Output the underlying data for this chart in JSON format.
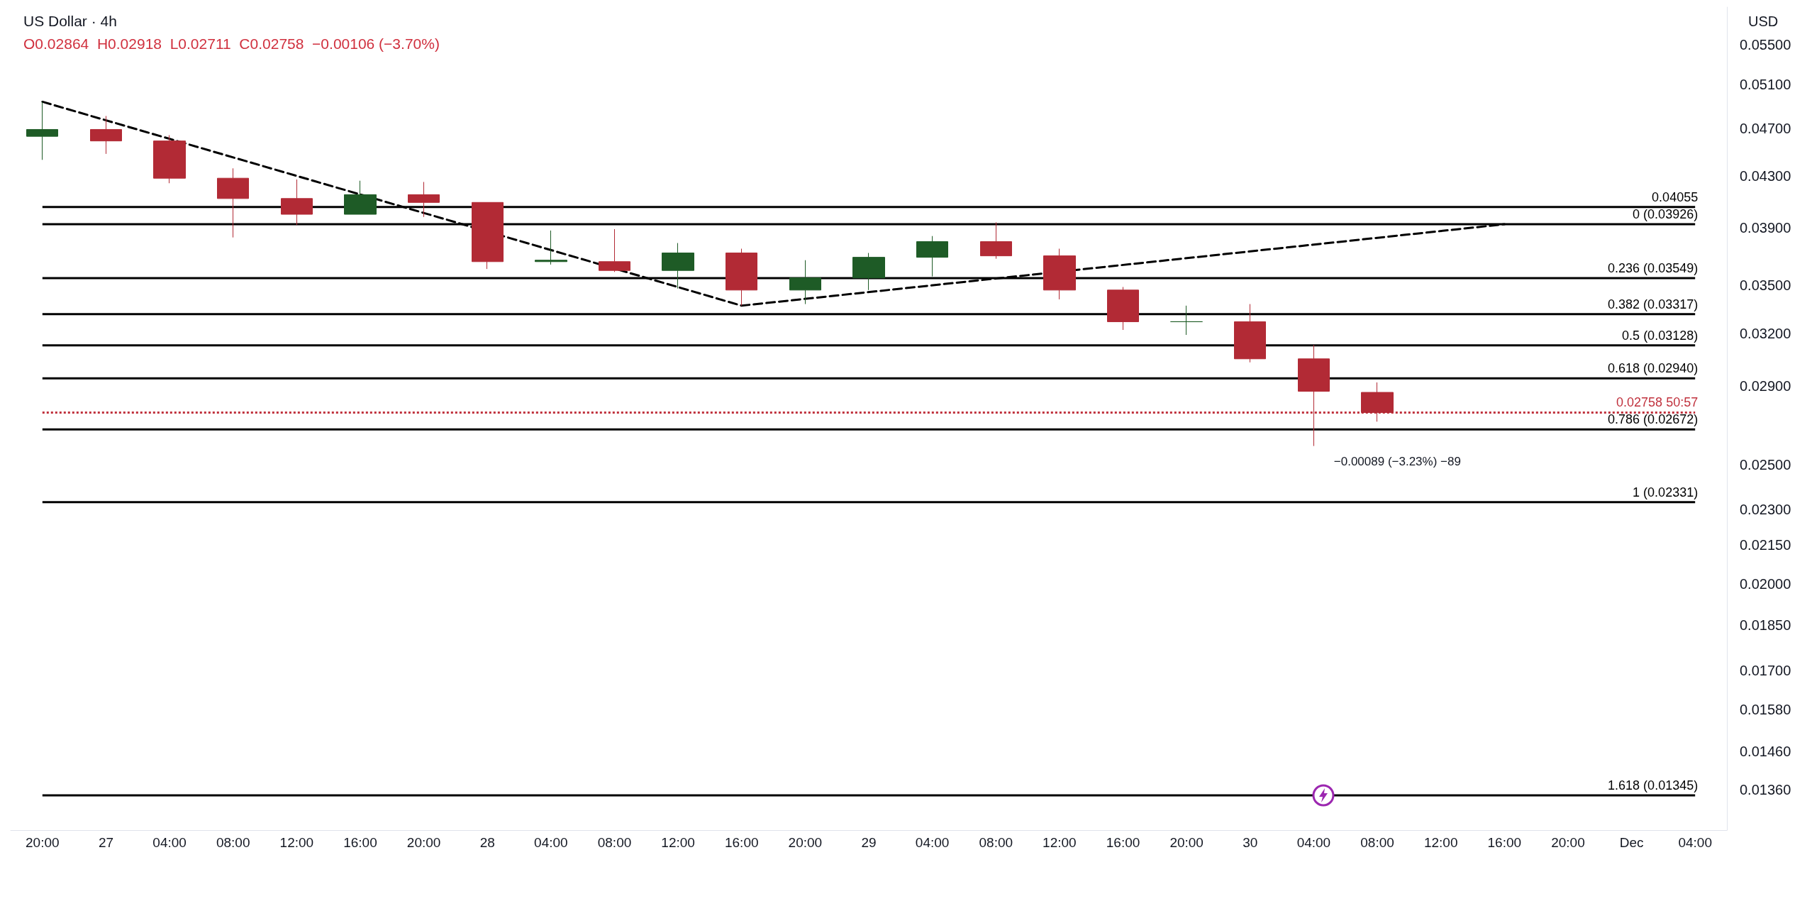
{
  "chart_data": {
    "type": "candlestick",
    "title": "US Dollar · 4h",
    "subtitle": "O0.02864  H0.02918  L0.02711  C0.02758  −0.00106 (−3.70%)",
    "ylabel": "USD",
    "categories": [
      "20:00",
      "27",
      "04:00",
      "08:00",
      "12:00",
      "16:00",
      "20:00",
      "28",
      "04:00",
      "08:00",
      "12:00",
      "16:00",
      "20:00",
      "29",
      "04:00",
      "08:00",
      "12:00",
      "16:00",
      "20:00",
      "30",
      "04:00",
      "08:00",
      "12:00",
      "16:00",
      "20:00",
      "Dec",
      "04:00"
    ],
    "ohlc": [
      [
        0.0463,
        0.0494,
        0.0443,
        0.0469
      ],
      [
        0.0469,
        0.0481,
        0.0448,
        0.0459
      ],
      [
        0.0459,
        0.0464,
        0.0424,
        0.0428
      ],
      [
        0.0428,
        0.0436,
        0.0383,
        0.0412
      ],
      [
        0.0412,
        0.0427,
        0.0392,
        0.04
      ],
      [
        0.04,
        0.0426,
        0.04,
        0.0415
      ],
      [
        0.0415,
        0.0425,
        0.0398,
        0.0409
      ],
      [
        0.0409,
        0.0409,
        0.0361,
        0.0366
      ],
      [
        0.0366,
        0.0388,
        0.0364,
        0.0367
      ],
      [
        0.0366,
        0.0389,
        0.0359,
        0.036
      ],
      [
        0.036,
        0.0379,
        0.0348,
        0.0372
      ],
      [
        0.0372,
        0.0375,
        0.0337,
        0.0347
      ],
      [
        0.0347,
        0.0367,
        0.0338,
        0.0355
      ],
      [
        0.0355,
        0.0372,
        0.0347,
        0.0369
      ],
      [
        0.0369,
        0.0384,
        0.0356,
        0.038
      ],
      [
        0.038,
        0.0394,
        0.0368,
        0.037
      ],
      [
        0.037,
        0.0375,
        0.0341,
        0.0347
      ],
      [
        0.0347,
        0.0349,
        0.0322,
        0.0327
      ],
      [
        0.0327,
        0.0337,
        0.0319,
        0.0327
      ],
      [
        0.0327,
        0.0338,
        0.0303,
        0.0305
      ],
      [
        0.0305,
        0.0313,
        0.0259,
        0.0287
      ],
      [
        0.02864,
        0.02918,
        0.02711,
        0.02758
      ],
      null,
      null,
      null,
      null,
      null
    ],
    "colors": [
      "#1e5b26",
      "#b22a35",
      "#b22a35",
      "#b22a35",
      "#b22a35",
      "#1e5b26",
      "#b22a35",
      "#b22a35",
      "#1e5b26",
      "#b22a35",
      "#1e5b26",
      "#b22a35",
      "#1e5b26",
      "#1e5b26",
      "#1e5b26",
      "#b22a35",
      "#b22a35",
      "#b22a35",
      "#1e5b26",
      "#b22a35",
      "#b22a35",
      "#b22a35",
      null,
      null,
      null,
      null,
      null
    ],
    "series": [
      {
        "type": "line",
        "color": "#000000",
        "line_style": "dashed",
        "marker": "none",
        "values": [
          0.0494,
          null,
          null,
          null,
          null,
          null,
          null,
          null,
          null,
          null,
          null,
          0.0337,
          null,
          null,
          null,
          null,
          null,
          null,
          null,
          null,
          null,
          null,
          null,
          0.03926,
          null,
          null,
          null
        ]
      }
    ],
    "ylim": [
      0.0126,
      0.059
    ],
    "log": true,
    "yticks": [
      {
        "value": 0.0136,
        "label": "0.01360"
      },
      {
        "value": 0.0146,
        "label": "0.01460"
      },
      {
        "value": 0.0158,
        "label": "0.01580"
      },
      {
        "value": 0.017,
        "label": "0.01700"
      },
      {
        "value": 0.0185,
        "label": "0.01850"
      },
      {
        "value": 0.02,
        "label": "0.02000"
      },
      {
        "value": 0.0215,
        "label": "0.02150"
      },
      {
        "value": 0.023,
        "label": "0.02300"
      },
      {
        "value": 0.025,
        "label": "0.02500"
      },
      {
        "value": 0.029,
        "label": "0.02900"
      },
      {
        "value": 0.032,
        "label": "0.03200"
      },
      {
        "value": 0.035,
        "label": "0.03500"
      },
      {
        "value": 0.039,
        "label": "0.03900"
      },
      {
        "value": 0.043,
        "label": "0.04300"
      },
      {
        "value": 0.047,
        "label": "0.04700"
      },
      {
        "value": 0.051,
        "label": "0.05100"
      },
      {
        "value": 0.055,
        "label": "0.05500"
      }
    ],
    "ref_lines": [
      {
        "axis": "y",
        "value": 0.04055,
        "label": "0.04055",
        "color": "#000000",
        "line_style": "solid"
      },
      {
        "axis": "y",
        "value": 0.02758,
        "label": "0.02758 50:57",
        "color": "#c0313d",
        "line_style": "dotted"
      },
      {
        "axis": "y",
        "value": 0.03926,
        "label": "0 (0.03926)",
        "color": "#000000",
        "line_style": "solid"
      },
      {
        "axis": "y",
        "value": 0.03549,
        "label": "0.236 (0.03549)",
        "color": "#000000",
        "line_style": "solid"
      },
      {
        "axis": "y",
        "value": 0.03317,
        "label": "0.382 (0.03317)",
        "color": "#000000",
        "line_style": "solid"
      },
      {
        "axis": "y",
        "value": 0.03128,
        "label": "0.5 (0.03128)",
        "color": "#000000",
        "line_style": "solid"
      },
      {
        "axis": "y",
        "value": 0.0294,
        "label": "0.618 (0.02940)",
        "color": "#000000",
        "line_style": "solid"
      },
      {
        "axis": "y",
        "value": 0.02672,
        "label": "0.786 (0.02672)",
        "color": "#000000",
        "line_style": "solid"
      },
      {
        "axis": "y",
        "value": 0.02331,
        "label": "1 (0.02331)",
        "color": "#000000",
        "line_style": "solid"
      },
      {
        "axis": "y",
        "value": 0.01345,
        "label": "1.618 (0.01345)",
        "color": "#000000",
        "line_style": "solid"
      }
    ],
    "annotations": [
      "−0.00089 (−3.23%) −89"
    ],
    "grid": false
  }
}
